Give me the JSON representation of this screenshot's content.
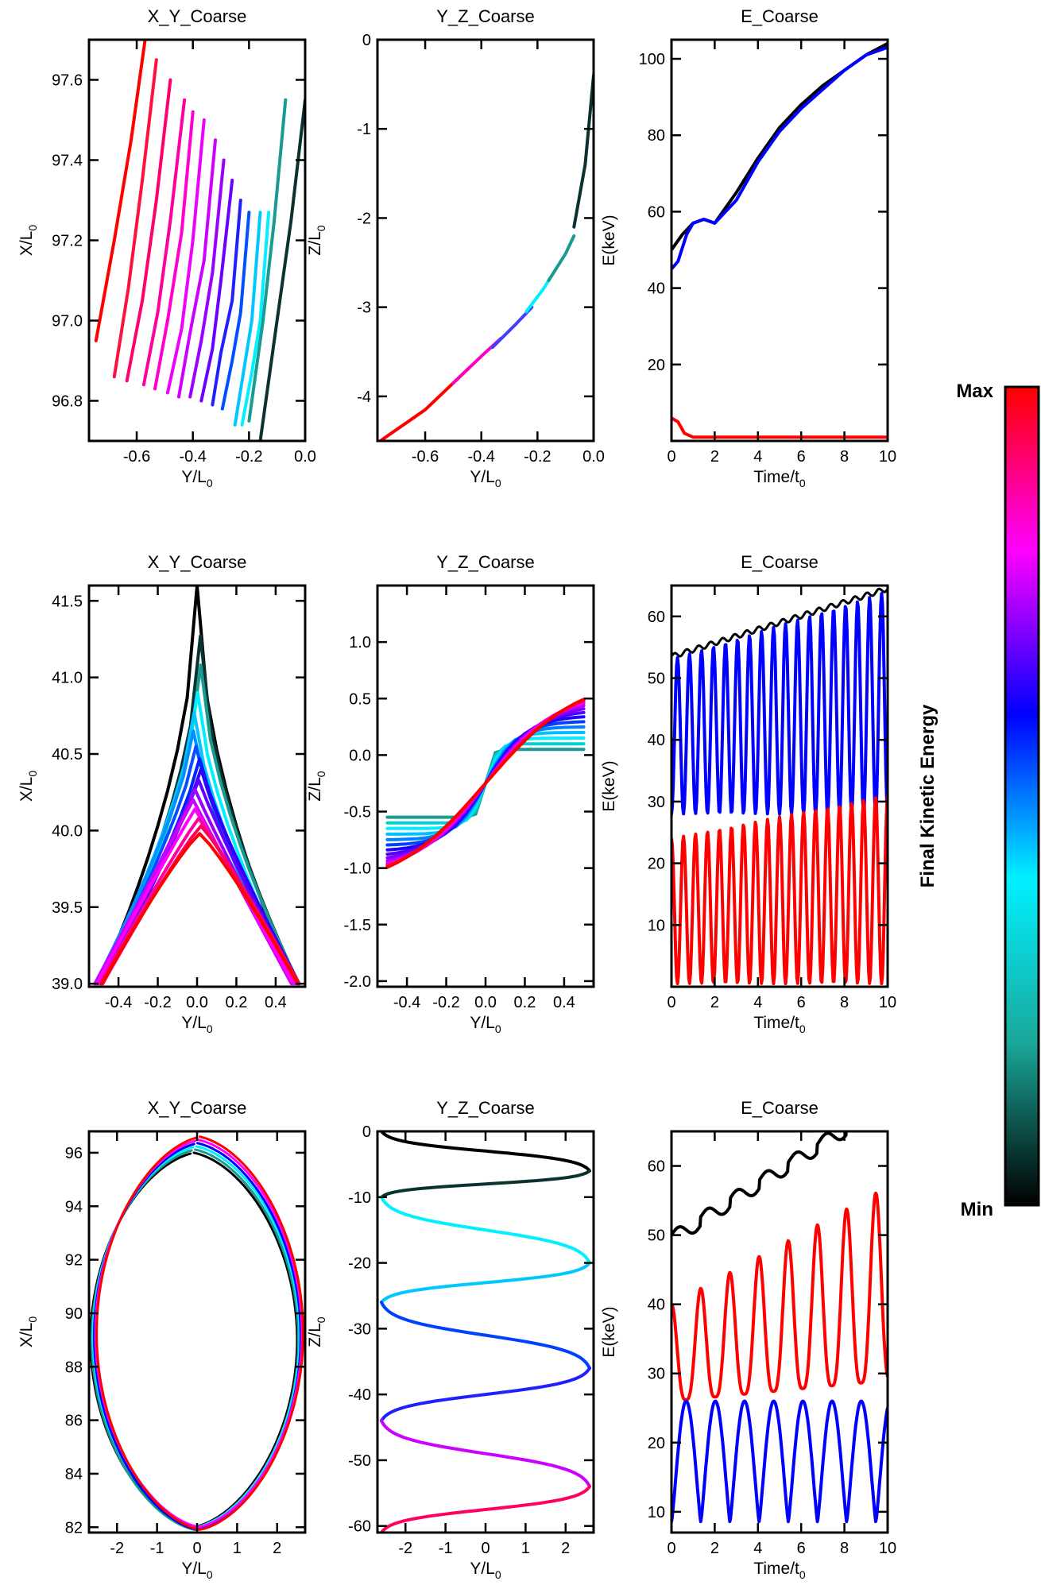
{
  "colorbar": {
    "label": "Final Kinetic Energy",
    "max_label": "Max",
    "min_label": "Min",
    "stops": [
      "#000000",
      "#1aa89a",
      "#00f0ff",
      "#0000ff",
      "#ff00ff",
      "#ff0000"
    ]
  },
  "chart_data": [
    {
      "type": "line",
      "title": "X_Y_Coarse",
      "xlabel": "Y/L0",
      "ylabel": "X/L0",
      "xlim": [
        -0.77,
        0.0
      ],
      "ylim": [
        96.7,
        97.7
      ],
      "xticks": [
        "-0.6",
        "-0.4",
        "-0.2",
        "0.0"
      ],
      "yticks": [
        "96.8",
        "97.0",
        "97.2",
        "97.4",
        "97.6"
      ],
      "note_series": "15 trajectory segments, color = final kinetic energy",
      "series": [
        {
          "color": "#ff0000",
          "x": [
            -0.745,
            -0.68,
            -0.62,
            -0.57
          ],
          "y": [
            96.95,
            97.2,
            97.45,
            97.7
          ]
        },
        {
          "color": "#ff1040",
          "x": [
            -0.68,
            -0.63,
            -0.58,
            -0.53
          ],
          "y": [
            96.86,
            97.08,
            97.35,
            97.65
          ]
        },
        {
          "color": "#ff0070",
          "x": [
            -0.635,
            -0.58,
            -0.53,
            -0.48
          ],
          "y": [
            96.85,
            97.05,
            97.3,
            97.6
          ]
        },
        {
          "color": "#ff00a0",
          "x": [
            -0.575,
            -0.525,
            -0.48,
            -0.43
          ],
          "y": [
            96.84,
            97.02,
            97.25,
            97.55
          ]
        },
        {
          "color": "#ff00d0",
          "x": [
            -0.535,
            -0.49,
            -0.44,
            -0.4
          ],
          "y": [
            96.83,
            97.0,
            97.22,
            97.52
          ]
        },
        {
          "color": "#ee00ff",
          "x": [
            -0.49,
            -0.44,
            -0.4,
            -0.36
          ],
          "y": [
            96.82,
            96.98,
            97.2,
            97.5
          ]
        },
        {
          "color": "#cc00ff",
          "x": [
            -0.45,
            -0.41,
            -0.36,
            -0.32
          ],
          "y": [
            96.81,
            96.97,
            97.15,
            97.45
          ]
        },
        {
          "color": "#9900ff",
          "x": [
            -0.41,
            -0.37,
            -0.33,
            -0.29
          ],
          "y": [
            96.81,
            96.95,
            97.12,
            97.4
          ]
        },
        {
          "color": "#6a00ff",
          "x": [
            -0.37,
            -0.33,
            -0.3,
            -0.26
          ],
          "y": [
            96.8,
            96.93,
            97.1,
            97.35
          ]
        },
        {
          "color": "#2020ff",
          "x": [
            -0.33,
            -0.3,
            -0.26,
            -0.23
          ],
          "y": [
            96.79,
            96.92,
            97.05,
            97.3
          ]
        },
        {
          "color": "#0050ff",
          "x": [
            -0.295,
            -0.26,
            -0.23,
            -0.2
          ],
          "y": [
            96.78,
            96.9,
            97.02,
            97.27
          ]
        },
        {
          "color": "#00c8ff",
          "x": [
            -0.25,
            -0.22,
            -0.19,
            -0.16
          ],
          "y": [
            96.74,
            96.87,
            97.0,
            97.27
          ]
        },
        {
          "color": "#00f0ff",
          "x": [
            -0.225,
            -0.19,
            -0.16,
            -0.13
          ],
          "y": [
            96.74,
            96.87,
            97.0,
            97.27
          ]
        },
        {
          "color": "#1a9a90",
          "x": [
            -0.2,
            -0.15,
            -0.11,
            -0.07
          ],
          "y": [
            96.75,
            97.0,
            97.25,
            97.55
          ]
        },
        {
          "color": "#0a3330",
          "x": [
            -0.16,
            -0.11,
            -0.05,
            0.0
          ],
          "y": [
            96.7,
            96.95,
            97.25,
            97.55
          ]
        }
      ]
    },
    {
      "type": "line",
      "title": "Y_Z_Coarse",
      "xlabel": "Y/L0",
      "ylabel": "Z/L0",
      "xlim": [
        -0.77,
        0.0
      ],
      "ylim": [
        -4.5,
        0.0
      ],
      "xticks": [
        "-0.6",
        "-0.4",
        "-0.2",
        "0.0"
      ],
      "yticks": [
        "-4",
        "-3",
        "-2",
        "-1",
        "0"
      ],
      "series": [
        {
          "color": "#ff0000",
          "x": [
            -0.76,
            -0.6,
            -0.5,
            -0.45
          ],
          "y": [
            -4.5,
            -4.15,
            -3.85,
            -3.7
          ]
        },
        {
          "color": "#ff00c0",
          "x": [
            -0.5,
            -0.4,
            -0.33
          ],
          "y": [
            -3.85,
            -3.55,
            -3.35
          ]
        },
        {
          "color": "#4040ff",
          "x": [
            -0.36,
            -0.28,
            -0.22
          ],
          "y": [
            -3.45,
            -3.2,
            -3.0
          ]
        },
        {
          "color": "#00f0ff",
          "x": [
            -0.24,
            -0.18,
            -0.14
          ],
          "y": [
            -3.05,
            -2.8,
            -2.6
          ]
        },
        {
          "color": "#1a9a90",
          "x": [
            -0.16,
            -0.1,
            -0.07
          ],
          "y": [
            -2.7,
            -2.4,
            -2.2
          ]
        },
        {
          "color": "#0a3330",
          "x": [
            -0.07,
            -0.03,
            0.0
          ],
          "y": [
            -2.1,
            -1.4,
            -0.4
          ]
        }
      ]
    },
    {
      "type": "line",
      "title": "E_Coarse",
      "xlabel": "Time/t0",
      "ylabel": "E(keV)",
      "xlim": [
        0,
        10
      ],
      "ylim": [
        0,
        105
      ],
      "xticks": [
        "0",
        "2",
        "4",
        "6",
        "8",
        "10"
      ],
      "yticks": [
        "20",
        "40",
        "60",
        "80",
        "100"
      ],
      "series": [
        {
          "color": "#000000",
          "x": [
            0,
            0.5,
            1,
            1.5,
            2,
            3,
            4,
            5,
            6,
            7,
            8,
            9,
            10
          ],
          "y": [
            50,
            54,
            57,
            58,
            57,
            65,
            74,
            82,
            88,
            93,
            97,
            101,
            104
          ]
        },
        {
          "color": "#0000ff",
          "x": [
            0,
            0.3,
            0.7,
            1,
            1.5,
            2,
            3,
            4,
            5,
            6,
            7,
            8,
            9,
            10
          ],
          "y": [
            45,
            47,
            54,
            57,
            58,
            57,
            63,
            73,
            81,
            87,
            92,
            97,
            101,
            103
          ]
        },
        {
          "color": "#ff0000",
          "x": [
            0,
            0.3,
            0.6,
            1,
            2,
            4,
            6,
            8,
            10
          ],
          "y": [
            6,
            5,
            2,
            1,
            1,
            1,
            1,
            1,
            1
          ]
        }
      ]
    },
    {
      "type": "line",
      "title": "X_Y_Coarse",
      "xlabel": "Y/L0",
      "ylabel": "X/L0",
      "xlim": [
        -0.55,
        0.55
      ],
      "ylim": [
        38.98,
        41.6
      ],
      "xticks": [
        "-0.4",
        "-0.2",
        "0.0",
        "0.2",
        "0.4"
      ],
      "yticks": [
        "39.0",
        "39.5",
        "40.0",
        "40.5",
        "41.0",
        "41.5"
      ],
      "series_peaks": [
        41.6,
        41.27,
        41.08,
        40.9,
        40.77,
        40.65,
        40.55,
        40.47,
        40.4,
        40.33,
        40.27,
        40.2,
        40.14,
        40.08,
        40.03,
        39.98
      ],
      "series_colors": [
        "#000000",
        "#0a3330",
        "#1a9a90",
        "#00f0ff",
        "#00c8ff",
        "#0090ff",
        "#0050ff",
        "#0020ff",
        "#3000ff",
        "#6000ff",
        "#9900ff",
        "#cc00ff",
        "#ff00ff",
        "#ff00a0",
        "#ff0060",
        "#ff0000"
      ]
    },
    {
      "type": "line",
      "title": "Y_Z_Coarse",
      "xlabel": "Y/L0",
      "ylabel": "Z/L0",
      "xlim": [
        -0.55,
        0.55
      ],
      "ylim": [
        -2.05,
        1.5
      ],
      "xticks": [
        "-0.4",
        "-0.2",
        "0.0",
        "0.2",
        "0.4"
      ],
      "yticks": [
        "-2.0",
        "-1.5",
        "-1.0",
        "-0.5",
        "0.0",
        "0.5",
        "1.0"
      ],
      "series_slopes": [
        9.0,
        6.0,
        4.5,
        3.8,
        3.3,
        3.0,
        2.8,
        2.6,
        2.45,
        2.35,
        2.25,
        2.15,
        2.05,
        2.0
      ],
      "series_colors": [
        "#1a9a90",
        "#00d0d0",
        "#00f0ff",
        "#00c0ff",
        "#0080ff",
        "#0040ff",
        "#2000ff",
        "#5000ff",
        "#8000ff",
        "#b000ff",
        "#e000ff",
        "#ff00c0",
        "#ff0060",
        "#ff0000"
      ]
    },
    {
      "type": "line",
      "title": "E_Coarse",
      "xlabel": "Time/t0",
      "ylabel": "E(keV)",
      "xlim": [
        0,
        10
      ],
      "ylim": [
        0,
        65
      ],
      "xticks": [
        "0",
        "2",
        "4",
        "6",
        "8",
        "10"
      ],
      "yticks": [
        "10",
        "20",
        "30",
        "40",
        "50",
        "60"
      ],
      "series": [
        {
          "name": "",
          "color": "#000000",
          "kind": "rise",
          "start": 53.5,
          "end": 64.5
        },
        {
          "name": "",
          "color": "#0000ff",
          "kind": "osc",
          "low": 28,
          "high_start": 53,
          "high_end": 64,
          "periods": 18
        },
        {
          "name": "",
          "color": "#ff0000",
          "kind": "osc",
          "low": 0.5,
          "high_start": 24,
          "high_end": 31,
          "periods": 18
        }
      ]
    },
    {
      "type": "line",
      "title": "X_Y_Coarse",
      "xlabel": "Y/L0",
      "ylabel": "X/L0",
      "xlim": [
        -2.7,
        2.7
      ],
      "ylim": [
        81.8,
        96.8
      ],
      "xticks": [
        "-2",
        "-1",
        "0",
        "1",
        "2"
      ],
      "yticks": [
        "82",
        "84",
        "86",
        "88",
        "90",
        "92",
        "94",
        "96"
      ],
      "series_colors": [
        "#000000",
        "#1a9a90",
        "#00f0ff",
        "#0000ff",
        "#ff00ff",
        "#ff0000"
      ]
    },
    {
      "type": "line",
      "title": "Y_Z_Coarse",
      "xlabel": "Y/L0",
      "ylabel": "Z/L0",
      "xlim": [
        -2.7,
        2.7
      ],
      "ylim": [
        -61,
        0
      ],
      "xticks": [
        "-2",
        "-1",
        "0",
        "1",
        "2"
      ],
      "yticks": [
        "-60",
        "-50",
        "-40",
        "-30",
        "-20",
        "-10",
        "0"
      ]
    },
    {
      "type": "line",
      "title": "E_Coarse",
      "xlabel": "Time/t0",
      "ylabel": "E(keV)",
      "xlim": [
        0,
        10
      ],
      "ylim": [
        7,
        65
      ],
      "xticks": [
        "0",
        "2",
        "4",
        "6",
        "8",
        "10"
      ],
      "yticks": [
        "10",
        "20",
        "30",
        "40",
        "50",
        "60"
      ]
    }
  ]
}
